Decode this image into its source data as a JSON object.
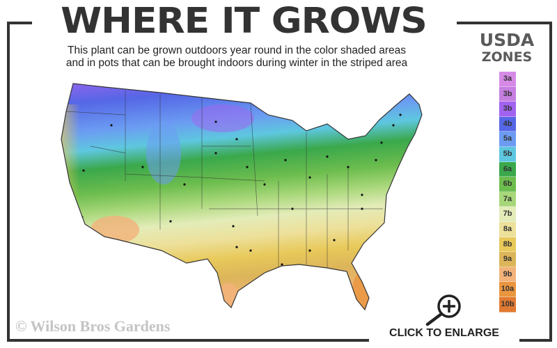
{
  "header": {
    "title": "WHERE IT GROWS",
    "subtitle_line1": "This plant can be grown outdoors year round in the color shaded areas",
    "subtitle_line2": "and in pots that can be brought indoors during winter in the striped area"
  },
  "legend": {
    "title_line1": "USDA",
    "title_line2": "ZONES",
    "zones": [
      {
        "label": "3a",
        "color": "#d68ae6"
      },
      {
        "label": "3b",
        "color": "#c67fe0"
      },
      {
        "label": "3b",
        "color": "#a263f0"
      },
      {
        "label": "4b",
        "color": "#5567e6"
      },
      {
        "label": "5a",
        "color": "#6b9cf2"
      },
      {
        "label": "5b",
        "color": "#5ec7df"
      },
      {
        "label": "6a",
        "color": "#3aa84b"
      },
      {
        "label": "6b",
        "color": "#6dbd4e"
      },
      {
        "label": "7a",
        "color": "#a8d77a"
      },
      {
        "label": "7b",
        "color": "#e3ecb8"
      },
      {
        "label": "8a",
        "color": "#ede09a"
      },
      {
        "label": "8b",
        "color": "#e8c95a"
      },
      {
        "label": "9a",
        "color": "#dcb55a"
      },
      {
        "label": "9b",
        "color": "#f2b27a"
      },
      {
        "label": "10a",
        "color": "#ea9640"
      },
      {
        "label": "10b",
        "color": "#e07a32"
      }
    ]
  },
  "footer": {
    "copyright": "© Wilson Bros Gardens",
    "enlarge_label": "CLICK TO ENLARGE",
    "enlarge_icon": "magnifier-plus-icon"
  }
}
